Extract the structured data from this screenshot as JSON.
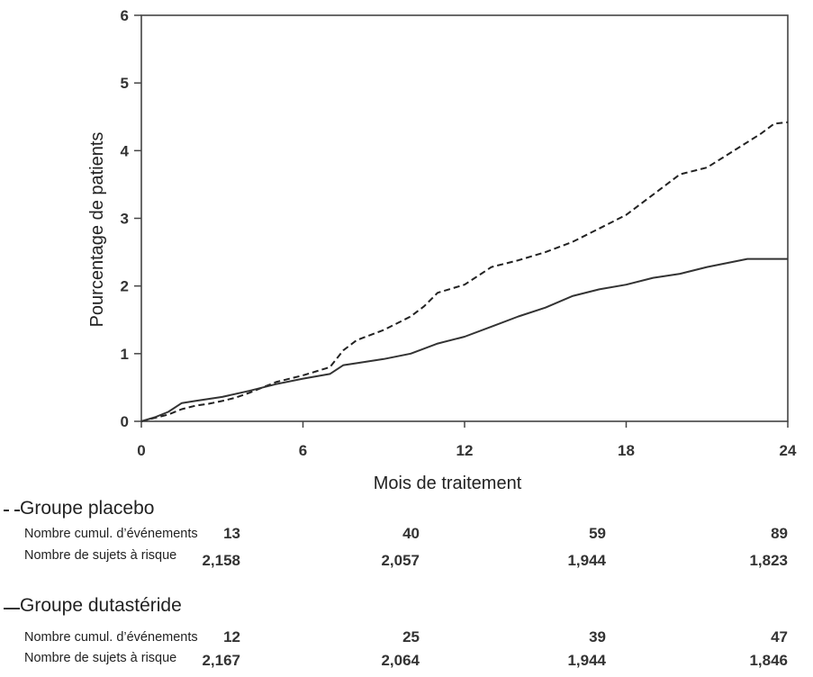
{
  "chart_data": {
    "type": "line",
    "title": "",
    "xlabel": "Mois de traitement",
    "ylabel": "Pourcentage de patients",
    "xlim": [
      0,
      24
    ],
    "ylim": [
      0,
      6
    ],
    "xticks": [
      "0",
      "6",
      "12",
      "18",
      "24"
    ],
    "yticks": [
      "0",
      "1",
      "2",
      "3",
      "4",
      "5",
      "6"
    ],
    "grid": false,
    "series": [
      {
        "name": "Groupe placebo",
        "style": "dashed",
        "color": "#222222",
        "x": [
          0,
          0.5,
          1,
          1.5,
          2,
          2.5,
          3,
          3.5,
          4,
          5,
          6,
          7,
          7.5,
          8,
          9,
          10,
          10.5,
          11,
          12,
          12.5,
          13,
          14,
          15,
          16,
          17,
          18,
          19,
          20,
          21,
          22,
          23,
          23.5,
          24
        ],
        "y": [
          0,
          0.05,
          0.1,
          0.18,
          0.23,
          0.26,
          0.3,
          0.35,
          0.42,
          0.58,
          0.68,
          0.8,
          1.05,
          1.2,
          1.35,
          1.55,
          1.7,
          1.9,
          2.02,
          2.15,
          2.28,
          2.38,
          2.5,
          2.65,
          2.85,
          3.05,
          3.35,
          3.65,
          3.75,
          4.0,
          4.25,
          4.4,
          4.42
        ]
      },
      {
        "name": "Groupe dutastéride",
        "style": "solid",
        "color": "#333333",
        "x": [
          0,
          0.5,
          1,
          1.5,
          2,
          3,
          4,
          5,
          6,
          7,
          7.5,
          8,
          9,
          10,
          11,
          12,
          13,
          14,
          15,
          16,
          17,
          18,
          19,
          20,
          21,
          22,
          22.5,
          24
        ],
        "y": [
          0,
          0.06,
          0.14,
          0.27,
          0.3,
          0.36,
          0.45,
          0.55,
          0.63,
          0.7,
          0.83,
          0.86,
          0.92,
          1.0,
          1.15,
          1.25,
          1.4,
          1.55,
          1.68,
          1.85,
          1.95,
          2.02,
          2.12,
          2.18,
          2.28,
          2.36,
          2.4,
          2.4
        ]
      }
    ]
  },
  "risk_table": {
    "groups": [
      {
        "title": "Groupe placebo",
        "rows": [
          {
            "label": "Nombre cumul. d’événements",
            "values": [
              "13",
              "40",
              "59",
              "89"
            ]
          },
          {
            "label": "Nombre de sujets à risque",
            "values": [
              "2,158",
              "2,057",
              "1,944",
              "1,823"
            ]
          }
        ]
      },
      {
        "title": "Groupe dutastéride",
        "rows": [
          {
            "label": "Nombre cumul. d’événements",
            "values": [
              "12",
              "25",
              "39",
              "47"
            ]
          },
          {
            "label": "Nombre de sujets à risque",
            "values": [
              "2,167",
              "2,064",
              "1,944",
              "1,846"
            ]
          }
        ]
      }
    ]
  }
}
